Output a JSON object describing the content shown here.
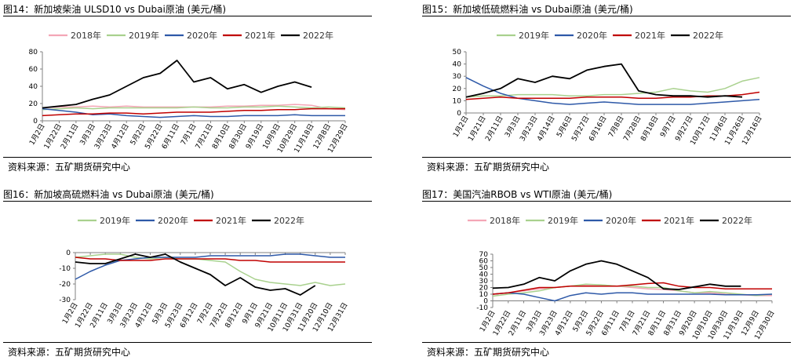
{
  "charts": [
    {
      "title": "图14：新加坡柴油 ULSD10 vs Dubai原油 (美元/桶)",
      "source": "资料来源：五矿期货研究中心",
      "chart_data": {
        "type": "line",
        "categories": [
          "1月2日",
          "1月22日",
          "2月11日",
          "3月3日",
          "3月23日",
          "4月12日",
          "5月2日",
          "5月22日",
          "6月11日",
          "7月1日",
          "7月21日",
          "8月10日",
          "8月30日",
          "9月19日",
          "10月9日",
          "10月29日",
          "11月18日",
          "12月8日",
          "12月29日"
        ],
        "ylim": [
          0,
          80
        ],
        "yticks": [
          0,
          20,
          40,
          60,
          80
        ],
        "xlabel": "",
        "ylabel": "",
        "legend_position": "top",
        "series": [
          {
            "name": "2018年",
            "color": "#f4a6b6",
            "values": [
              15,
              16,
              16,
              17,
              16,
              17,
              16,
              16,
              16,
              16,
              16,
              17,
              17,
              18,
              18,
              19,
              18,
              14,
              13
            ]
          },
          {
            "name": "2019年",
            "color": "#a9d18e",
            "values": [
              13,
              14,
              15,
              14,
              15,
              15,
              15,
              15,
              15,
              16,
              15,
              15,
              16,
              16,
              17,
              16,
              15,
              16,
              15
            ]
          },
          {
            "name": "2020年",
            "color": "#2e59a8",
            "values": [
              14,
              12,
              10,
              7,
              8,
              6,
              5,
              4,
              5,
              6,
              5,
              5,
              6,
              6,
              6,
              7,
              6,
              6,
              6
            ]
          },
          {
            "name": "2021年",
            "color": "#c00000",
            "values": [
              6,
              7,
              8,
              8,
              9,
              9,
              8,
              9,
              10,
              10,
              10,
              11,
              12,
              12,
              13,
              13,
              14,
              14,
              14
            ]
          },
          {
            "name": "2022年",
            "color": "#000000",
            "values": [
              15,
              17,
              19,
              25,
              30,
              40,
              50,
              55,
              70,
              45,
              50,
              37,
              42,
              33,
              40,
              45,
              39,
              null,
              null
            ]
          }
        ]
      }
    },
    {
      "title": "图15：新加坡低硫燃料油 vs Dubai原油  (美元/桶)",
      "source": "资料来源：五矿期货研究中心",
      "chart_data": {
        "type": "line",
        "categories": [
          "1月2日",
          "1月21日",
          "2月11日",
          "3月3日",
          "3月23日",
          "4月14日",
          "5月6日",
          "5月27日",
          "6月16日",
          "7月8日",
          "7月28日",
          "8月18日",
          "9月7日",
          "9月27日",
          "10月17日",
          "11月6日",
          "11月26日",
          "12月16日"
        ],
        "ylim": [
          0,
          50
        ],
        "yticks": [
          0,
          10,
          20,
          30,
          40,
          50
        ],
        "xlabel": "",
        "ylabel": "",
        "legend_position": "top",
        "series": [
          {
            "name": "2019年",
            "color": "#a9d18e",
            "values": [
              13,
              14,
              14,
              15,
              15,
              15,
              14,
              14,
              15,
              15,
              16,
              17,
              20,
              18,
              17,
              20,
              26,
              29
            ]
          },
          {
            "name": "2020年",
            "color": "#2e59a8",
            "values": [
              29,
              22,
              16,
              12,
              10,
              8,
              7,
              8,
              9,
              8,
              7,
              7,
              7,
              7,
              8,
              9,
              10,
              11
            ]
          },
          {
            "name": "2021年",
            "color": "#c00000",
            "values": [
              11,
              12,
              13,
              12,
              12,
              12,
              12,
              13,
              13,
              13,
              12,
              12,
              13,
              13,
              14,
              14,
              15,
              17
            ]
          },
          {
            "name": "2022年",
            "color": "#000000",
            "values": [
              13,
              16,
              20,
              28,
              25,
              30,
              28,
              35,
              38,
              40,
              18,
              15,
              14,
              14,
              13,
              14,
              13,
              null
            ]
          }
        ]
      }
    },
    {
      "title": "图16：新加坡高硫燃料油 vs Dubai原油  (美元/桶)",
      "source": "资料来源：五矿期货研究中心",
      "chart_data": {
        "type": "line",
        "categories": [
          "1月2日",
          "1月22日",
          "2月11日",
          "3月3日",
          "3月23日",
          "4月12日",
          "5月3日",
          "5月23日",
          "6月12日",
          "7月2日",
          "7月22日",
          "8月12日",
          "9月1日",
          "9月21日",
          "10月11日",
          "10月31日",
          "11月20日",
          "12月10日",
          "12月31日"
        ],
        "ylim": [
          -30,
          0
        ],
        "yticks": [
          0,
          -10,
          -20,
          -30
        ],
        "xlabel": "",
        "ylabel": "",
        "legend_position": "top",
        "series": [
          {
            "name": "2019年",
            "color": "#a9d18e",
            "values": [
              -3,
              -2,
              -1,
              -1,
              -3,
              -4,
              -3,
              -4,
              -4,
              -5,
              -6,
              -12,
              -17,
              -19,
              -20,
              -21,
              -19,
              -21,
              -20
            ]
          },
          {
            "name": "2020年",
            "color": "#2e59a8",
            "values": [
              -17,
              -12,
              -8,
              -5,
              -4,
              -3,
              -3,
              -3,
              -3,
              -2,
              -2,
              -2,
              -2,
              -2,
              -1,
              -1,
              -2,
              -3,
              -3
            ]
          },
          {
            "name": "2021年",
            "color": "#c00000",
            "values": [
              -3,
              -4,
              -4,
              -5,
              -5,
              -5,
              -4,
              -4,
              -4,
              -4,
              -4,
              -5,
              -5,
              -6,
              -6,
              -6,
              -6,
              -6,
              -6
            ]
          },
          {
            "name": "2022年",
            "color": "#000000",
            "values": [
              -6,
              -7,
              -7,
              -4,
              -1,
              -3,
              -1,
              -6,
              -10,
              -14,
              -21,
              -16,
              -22,
              -24,
              -23,
              -27,
              -21,
              null,
              null
            ]
          }
        ]
      }
    },
    {
      "title": "图17：美国汽油RBOB vs WTI原油  (美元/桶)",
      "source": "资料来源：五矿期货研究中心",
      "chart_data": {
        "type": "line",
        "categories": [
          "1月2日",
          "1月22日",
          "2月11日",
          "3月3日",
          "3月23日",
          "4月12日",
          "5月2日",
          "5月22日",
          "6月11日",
          "7月1日",
          "7月21日",
          "8月11日",
          "8月31日",
          "9月20日",
          "10月10日",
          "10月30日",
          "11月19日",
          "12月9日",
          "12月30日"
        ],
        "ylim": [
          -10,
          70
        ],
        "yticks": [
          70,
          60,
          50,
          40,
          30,
          20,
          10,
          0,
          -10
        ],
        "xlabel": "",
        "ylabel": "",
        "legend_position": "top",
        "series": [
          {
            "name": "2018年",
            "color": "#f4a6b6",
            "values": [
              10,
              12,
              15,
              18,
              20,
              22,
              24,
              24,
              22,
              20,
              18,
              17,
              15,
              12,
              12,
              10,
              9,
              8,
              8
            ]
          },
          {
            "name": "2019年",
            "color": "#a9d18e",
            "values": [
              7,
              10,
              12,
              15,
              20,
              22,
              25,
              24,
              22,
              22,
              20,
              20,
              15,
              12,
              14,
              12,
              10,
              8,
              10
            ]
          },
          {
            "name": "2020年",
            "color": "#2e59a8",
            "values": [
              10,
              12,
              10,
              5,
              0,
              8,
              12,
              10,
              12,
              12,
              10,
              10,
              10,
              10,
              10,
              9,
              9,
              9,
              10
            ]
          },
          {
            "name": "2021年",
            "color": "#c00000",
            "values": [
              10,
              12,
              16,
              20,
              20,
              22,
              22,
              22,
              22,
              24,
              26,
              27,
              22,
              20,
              20,
              18,
              18,
              18,
              18
            ]
          },
          {
            "name": "2022年",
            "color": "#000000",
            "values": [
              19,
              20,
              25,
              35,
              30,
              45,
              55,
              60,
              55,
              45,
              35,
              18,
              17,
              21,
              25,
              22,
              22,
              null,
              null
            ]
          }
        ]
      }
    }
  ]
}
